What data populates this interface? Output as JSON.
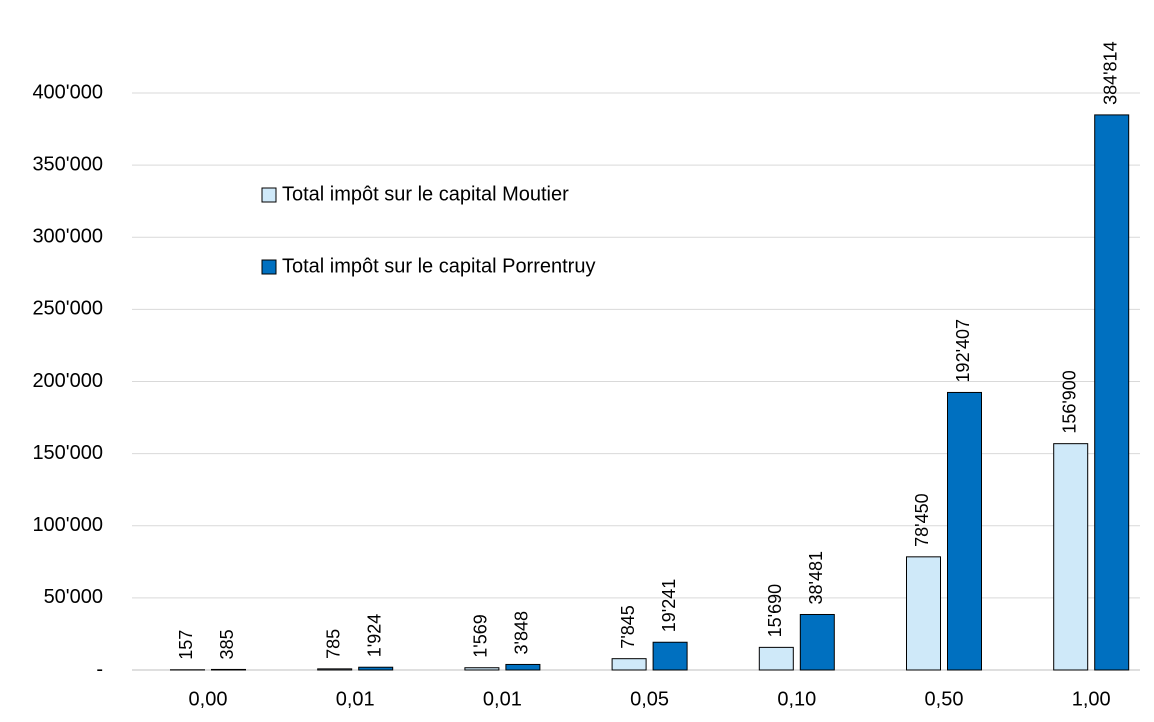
{
  "chart_data": {
    "type": "bar",
    "categories": [
      "0,00",
      "0,01",
      "0,01",
      "0,05",
      "0,10",
      "0,50",
      "1,00"
    ],
    "series": [
      {
        "name": "Total impôt sur le capital Moutier",
        "color": "#cfe9f9",
        "values": [
          157,
          785,
          1569,
          7845,
          15690,
          78450,
          156900
        ],
        "value_labels": [
          "157",
          "785",
          "1'569",
          "7'845",
          "15'690",
          "78'450",
          "156'900"
        ]
      },
      {
        "name": "Total impôt sur le capital Porrentruy",
        "color": "#0070c0",
        "values": [
          385,
          1924,
          3848,
          19241,
          38481,
          192407,
          384814
        ],
        "value_labels": [
          "385",
          "1'924",
          "3'848",
          "19'241",
          "38'481",
          "192'407",
          "384'814"
        ]
      }
    ],
    "ylim": [
      0,
      400000
    ],
    "yticks": [
      {
        "value": 0,
        "label": "-"
      },
      {
        "value": 50000,
        "label": "50'000"
      },
      {
        "value": 100000,
        "label": "100'000"
      },
      {
        "value": 150000,
        "label": "150'000"
      },
      {
        "value": 200000,
        "label": "200'000"
      },
      {
        "value": 250000,
        "label": "250'000"
      },
      {
        "value": 300000,
        "label": "300'000"
      },
      {
        "value": 350000,
        "label": "350'000"
      },
      {
        "value": 400000,
        "label": "400'000"
      }
    ],
    "grid": true
  }
}
